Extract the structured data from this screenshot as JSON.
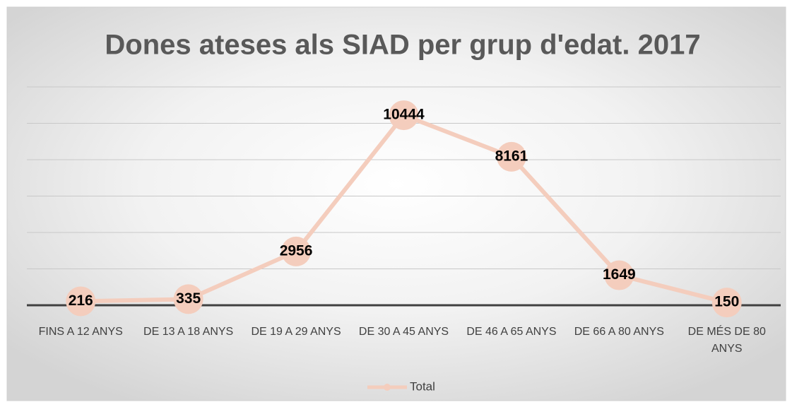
{
  "chart_data": {
    "type": "line",
    "title": "Dones ateses als SIAD per grup d'edat. 2017",
    "categories": [
      "FINS A 12 ANYS",
      "DE 13 A 18 ANYS",
      "DE 19 A 29 ANYS",
      "DE 30 A 45 ANYS",
      "DE 46 A 65 ANYS",
      "DE 66 A 80 ANYS",
      "DE MÉS DE 80 ANYS"
    ],
    "series": [
      {
        "name": "Total",
        "color": "#f4cdbd",
        "values": [
          216,
          335,
          2956,
          10444,
          8161,
          1649,
          150
        ]
      }
    ],
    "ylim": [
      0,
      12000
    ],
    "yticks": [
      0,
      2000,
      4000,
      6000,
      8000,
      10000,
      12000
    ],
    "grid": true,
    "legend": "bottom"
  }
}
